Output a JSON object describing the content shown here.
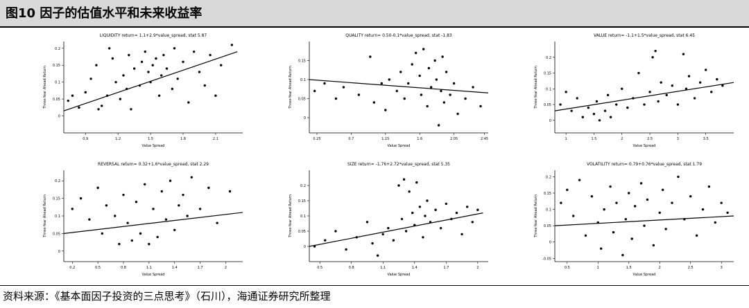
{
  "figure": {
    "title": "图10 因子的估值水平和未来收益率",
    "source": "资料来源：《基本面因子投资的三点思考》（石川），海通证券研究所整理"
  },
  "chart_data": [
    {
      "type": "scatter",
      "title": "LIQUIDITY return= 1.1+2.9*value_spread, stat 5.87",
      "xlabel": "Value Spread",
      "ylabel": "Three-Year Ahead Return",
      "xlim": [
        0.7,
        2.35
      ],
      "ylim": [
        -0.05,
        0.22
      ],
      "xticks": [
        0.9,
        1.2,
        1.5,
        1.8,
        2.1
      ],
      "yticks": [
        0.0,
        0.05,
        0.1,
        0.15,
        0.2
      ],
      "trend": [
        [
          0.7,
          0.015
        ],
        [
          2.3,
          0.19
        ]
      ],
      "points": [
        [
          0.74,
          0.045
        ],
        [
          0.78,
          0.06
        ],
        [
          0.84,
          0.025
        ],
        [
          0.9,
          0.07
        ],
        [
          0.95,
          0.11
        ],
        [
          1.0,
          0.15
        ],
        [
          1.02,
          0.02
        ],
        [
          1.05,
          0.03
        ],
        [
          1.1,
          0.06
        ],
        [
          1.12,
          0.2
        ],
        [
          1.15,
          0.17
        ],
        [
          1.18,
          0.1
        ],
        [
          1.22,
          0.05
        ],
        [
          1.25,
          0.12
        ],
        [
          1.28,
          0.08
        ],
        [
          1.3,
          0.18
        ],
        [
          1.32,
          0.02
        ],
        [
          1.35,
          0.14
        ],
        [
          1.4,
          0.09
        ],
        [
          1.42,
          0.16
        ],
        [
          1.45,
          0.19
        ],
        [
          1.48,
          0.13
        ],
        [
          1.5,
          0.1
        ],
        [
          1.52,
          0.15
        ],
        [
          1.55,
          0.17
        ],
        [
          1.58,
          0.06
        ],
        [
          1.6,
          0.12
        ],
        [
          1.62,
          0.18
        ],
        [
          1.65,
          0.14
        ],
        [
          1.7,
          0.08
        ],
        [
          1.72,
          0.2
        ],
        [
          1.75,
          0.11
        ],
        [
          1.8,
          0.16
        ],
        [
          1.85,
          0.04
        ],
        [
          1.9,
          0.19
        ],
        [
          1.95,
          0.13
        ],
        [
          2.0,
          0.09
        ],
        [
          2.05,
          0.18
        ],
        [
          2.1,
          0.06
        ],
        [
          2.15,
          0.15
        ],
        [
          2.25,
          0.21
        ]
      ]
    },
    {
      "type": "scatter",
      "title": "QUALITY return= 0.50-0.1*value_spread, stat -1.83",
      "xlabel": "Value Spread",
      "ylabel": "Three-Year Ahead Return",
      "xlim": [
        0.15,
        2.5
      ],
      "ylim": [
        -0.04,
        0.2
      ],
      "xticks": [
        0.25,
        0.7,
        1.15,
        1.6,
        2.05,
        2.45
      ],
      "yticks": [
        0.0,
        0.05,
        0.1,
        0.15
      ],
      "trend": [
        [
          0.15,
          0.1
        ],
        [
          2.5,
          0.065
        ]
      ],
      "points": [
        [
          0.22,
          0.07
        ],
        [
          0.35,
          0.09
        ],
        [
          0.5,
          0.05
        ],
        [
          0.6,
          0.08
        ],
        [
          0.8,
          0.06
        ],
        [
          0.95,
          0.16
        ],
        [
          1.0,
          0.04
        ],
        [
          1.1,
          0.09
        ],
        [
          1.15,
          0.02
        ],
        [
          1.2,
          0.1
        ],
        [
          1.3,
          0.07
        ],
        [
          1.35,
          0.12
        ],
        [
          1.4,
          0.05
        ],
        [
          1.45,
          0.09
        ],
        [
          1.5,
          0.14
        ],
        [
          1.55,
          0.17
        ],
        [
          1.6,
          0.11
        ],
        [
          1.62,
          0.06
        ],
        [
          1.65,
          0.18
        ],
        [
          1.7,
          0.03
        ],
        [
          1.72,
          0.13
        ],
        [
          1.75,
          0.08
        ],
        [
          1.8,
          0.15
        ],
        [
          1.82,
          0.1
        ],
        [
          1.85,
          -0.02
        ],
        [
          1.88,
          0.07
        ],
        [
          1.9,
          0.16
        ],
        [
          1.92,
          0.04
        ],
        [
          1.95,
          0.12
        ],
        [
          2.0,
          0.06
        ],
        [
          2.05,
          0.09
        ],
        [
          2.1,
          0.01
        ],
        [
          2.2,
          0.05
        ],
        [
          2.3,
          0.08
        ],
        [
          2.4,
          0.03
        ]
      ]
    },
    {
      "type": "scatter",
      "title": "VALUE return= -1.1+1.5*value_spread, stat 6.45",
      "xlabel": "Value Spread",
      "ylabel": "Three-Year Ahead Return",
      "xlim": [
        0.8,
        4.0
      ],
      "ylim": [
        -0.04,
        0.25
      ],
      "xticks": [
        1.0,
        1.5,
        2.0,
        2.5,
        3.0,
        3.5
      ],
      "yticks": [
        0.0,
        0.05,
        0.1,
        0.15,
        0.2
      ],
      "trend": [
        [
          0.8,
          0.03
        ],
        [
          4.0,
          0.12
        ]
      ],
      "points": [
        [
          0.9,
          0.05
        ],
        [
          1.0,
          0.09
        ],
        [
          1.1,
          0.03
        ],
        [
          1.2,
          0.07
        ],
        [
          1.3,
          0.01
        ],
        [
          1.4,
          0.04
        ],
        [
          1.5,
          0.02
        ],
        [
          1.55,
          0.06
        ],
        [
          1.6,
          0.0
        ],
        [
          1.7,
          0.03
        ],
        [
          1.75,
          0.08
        ],
        [
          1.8,
          0.01
        ],
        [
          1.9,
          0.05
        ],
        [
          2.0,
          0.1
        ],
        [
          2.1,
          0.04
        ],
        [
          2.2,
          0.07
        ],
        [
          2.3,
          0.15
        ],
        [
          2.4,
          0.05
        ],
        [
          2.5,
          0.09
        ],
        [
          2.55,
          0.2
        ],
        [
          2.6,
          0.22
        ],
        [
          2.65,
          0.06
        ],
        [
          2.7,
          0.12
        ],
        [
          2.8,
          0.08
        ],
        [
          2.9,
          0.11
        ],
        [
          3.0,
          0.05
        ],
        [
          3.1,
          0.21
        ],
        [
          3.15,
          0.1
        ],
        [
          3.2,
          0.14
        ],
        [
          3.3,
          0.07
        ],
        [
          3.4,
          0.12
        ],
        [
          3.5,
          0.16
        ],
        [
          3.6,
          0.09
        ],
        [
          3.7,
          0.13
        ],
        [
          3.8,
          0.11
        ]
      ]
    },
    {
      "type": "scatter",
      "title": "REVERSAL return= 0.32+1.6*value_spread, stat 2.29",
      "xlabel": "Value Spread",
      "ylabel": "Three-Year Ahead Return",
      "xlim": [
        0.1,
        2.2
      ],
      "ylim": [
        -0.03,
        0.23
      ],
      "xticks": [
        0.2,
        0.5,
        0.8,
        1.1,
        1.4,
        1.7,
        2.0
      ],
      "yticks": [
        0.0,
        0.05,
        0.1,
        0.15,
        0.2
      ],
      "trend": [
        [
          0.1,
          0.05
        ],
        [
          2.2,
          0.11
        ]
      ],
      "points": [
        [
          0.2,
          0.12
        ],
        [
          0.3,
          0.15
        ],
        [
          0.4,
          0.09
        ],
        [
          0.5,
          0.18
        ],
        [
          0.55,
          0.05
        ],
        [
          0.6,
          0.13
        ],
        [
          0.7,
          0.1
        ],
        [
          0.75,
          0.02
        ],
        [
          0.8,
          0.16
        ],
        [
          0.85,
          0.08
        ],
        [
          0.9,
          0.03
        ],
        [
          0.95,
          0.14
        ],
        [
          1.0,
          0.05
        ],
        [
          1.05,
          0.19
        ],
        [
          1.1,
          0.02
        ],
        [
          1.15,
          0.12
        ],
        [
          1.2,
          0.04
        ],
        [
          1.25,
          0.17
        ],
        [
          1.3,
          0.09
        ],
        [
          1.35,
          0.2
        ],
        [
          1.4,
          0.06
        ],
        [
          1.45,
          0.13
        ],
        [
          1.5,
          0.16
        ],
        [
          1.55,
          0.1
        ],
        [
          1.6,
          0.21
        ],
        [
          1.7,
          0.12
        ],
        [
          1.8,
          0.18
        ],
        [
          1.9,
          0.08
        ],
        [
          2.05,
          0.17
        ]
      ]
    },
    {
      "type": "scatter",
      "title": "SIZE return= -1.76+2.72*value_spread, stat 5.35",
      "xlabel": "Value Spread",
      "ylabel": "Three-Year Ahead Return",
      "xlim": [
        0.4,
        2.1
      ],
      "ylim": [
        -0.05,
        0.25
      ],
      "xticks": [
        0.5,
        0.8,
        1.1,
        1.4,
        1.7,
        2.0
      ],
      "yticks": [
        0.0,
        0.05,
        0.1,
        0.15,
        0.2
      ],
      "trend": [
        [
          0.4,
          0.0
        ],
        [
          2.05,
          0.11
        ]
      ],
      "points": [
        [
          0.45,
          0.0
        ],
        [
          0.55,
          0.02
        ],
        [
          0.65,
          0.05
        ],
        [
          0.75,
          -0.01
        ],
        [
          0.85,
          0.03
        ],
        [
          0.95,
          0.08
        ],
        [
          1.0,
          0.01
        ],
        [
          1.05,
          -0.03
        ],
        [
          1.1,
          0.04
        ],
        [
          1.15,
          0.06
        ],
        [
          1.2,
          0.02
        ],
        [
          1.25,
          0.2
        ],
        [
          1.28,
          0.09
        ],
        [
          1.3,
          0.22
        ],
        [
          1.32,
          0.05
        ],
        [
          1.35,
          0.18
        ],
        [
          1.38,
          0.11
        ],
        [
          1.4,
          0.07
        ],
        [
          1.42,
          0.21
        ],
        [
          1.45,
          0.13
        ],
        [
          1.48,
          0.03
        ],
        [
          1.5,
          0.1
        ],
        [
          1.52,
          0.15
        ],
        [
          1.55,
          0.08
        ],
        [
          1.6,
          0.12
        ],
        [
          1.65,
          0.06
        ],
        [
          1.7,
          0.14
        ],
        [
          1.75,
          0.09
        ],
        [
          1.8,
          0.11
        ],
        [
          1.85,
          0.04
        ],
        [
          1.9,
          0.13
        ],
        [
          1.95,
          0.08
        ],
        [
          2.0,
          0.12
        ]
      ]
    },
    {
      "type": "scatter",
      "title": "VOLATILITY return= 0.79+0.76*value_spread, stat 1.79",
      "xlabel": "Value Spread",
      "ylabel": "Three-Year Ahead Return",
      "xlim": [
        0.3,
        3.2
      ],
      "ylim": [
        -0.06,
        0.22
      ],
      "xticks": [
        0.5,
        1.0,
        1.5,
        2.0,
        2.5,
        3.0
      ],
      "yticks": [
        -0.05,
        0.0,
        0.05,
        0.1,
        0.15,
        0.2
      ],
      "trend": [
        [
          0.3,
          0.05
        ],
        [
          3.2,
          0.08
        ]
      ],
      "points": [
        [
          0.4,
          0.12
        ],
        [
          0.5,
          0.16
        ],
        [
          0.6,
          0.08
        ],
        [
          0.7,
          0.19
        ],
        [
          0.8,
          0.02
        ],
        [
          0.9,
          0.14
        ],
        [
          1.0,
          0.06
        ],
        [
          1.05,
          -0.02
        ],
        [
          1.1,
          0.1
        ],
        [
          1.2,
          0.17
        ],
        [
          1.25,
          0.03
        ],
        [
          1.3,
          0.12
        ],
        [
          1.4,
          -0.04
        ],
        [
          1.45,
          0.07
        ],
        [
          1.5,
          0.15
        ],
        [
          1.55,
          0.01
        ],
        [
          1.6,
          0.11
        ],
        [
          1.7,
          0.18
        ],
        [
          1.75,
          0.05
        ],
        [
          1.8,
          0.13
        ],
        [
          1.9,
          -0.01
        ],
        [
          2.0,
          0.09
        ],
        [
          2.05,
          0.16
        ],
        [
          2.1,
          0.04
        ],
        [
          2.2,
          0.12
        ],
        [
          2.3,
          0.2
        ],
        [
          2.4,
          0.07
        ],
        [
          2.5,
          0.14
        ],
        [
          2.6,
          0.02
        ],
        [
          2.7,
          0.1
        ],
        [
          2.8,
          0.17
        ],
        [
          2.9,
          0.06
        ],
        [
          3.0,
          0.12
        ],
        [
          3.1,
          0.09
        ]
      ]
    }
  ]
}
